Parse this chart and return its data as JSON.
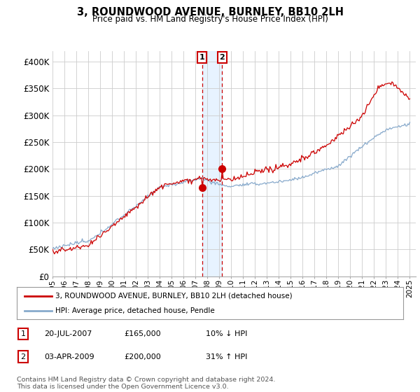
{
  "title": "3, ROUNDWOOD AVENUE, BURNLEY, BB10 2LH",
  "subtitle": "Price paid vs. HM Land Registry's House Price Index (HPI)",
  "xlim_start": 1995.0,
  "xlim_end": 2025.5,
  "ylim": [
    0,
    420000
  ],
  "yticks": [
    0,
    50000,
    100000,
    150000,
    200000,
    250000,
    300000,
    350000,
    400000
  ],
  "ytick_labels": [
    "£0",
    "£50K",
    "£100K",
    "£150K",
    "£200K",
    "£250K",
    "£300K",
    "£350K",
    "£400K"
  ],
  "xticks": [
    1995,
    1996,
    1997,
    1998,
    1999,
    2000,
    2001,
    2002,
    2003,
    2004,
    2005,
    2006,
    2007,
    2008,
    2009,
    2010,
    2011,
    2012,
    2013,
    2014,
    2015,
    2016,
    2017,
    2018,
    2019,
    2020,
    2021,
    2022,
    2023,
    2024,
    2025
  ],
  "line_color_red": "#cc0000",
  "line_color_blue": "#88aacc",
  "marker_color": "#cc0000",
  "transaction1_x": 2007.55,
  "transaction1_y": 165000,
  "transaction2_x": 2009.25,
  "transaction2_y": 200000,
  "legend_label_red": "3, ROUNDWOOD AVENUE, BURNLEY, BB10 2LH (detached house)",
  "legend_label_blue": "HPI: Average price, detached house, Pendle",
  "table_row1": [
    "1",
    "20-JUL-2007",
    "£165,000",
    "10% ↓ HPI"
  ],
  "table_row2": [
    "2",
    "03-APR-2009",
    "£200,000",
    "31% ↑ HPI"
  ],
  "footnote": "Contains HM Land Registry data © Crown copyright and database right 2024.\nThis data is licensed under the Open Government Licence v3.0.",
  "background_color": "#ffffff",
  "grid_color": "#cccccc",
  "shade_color": "#ddeeff"
}
